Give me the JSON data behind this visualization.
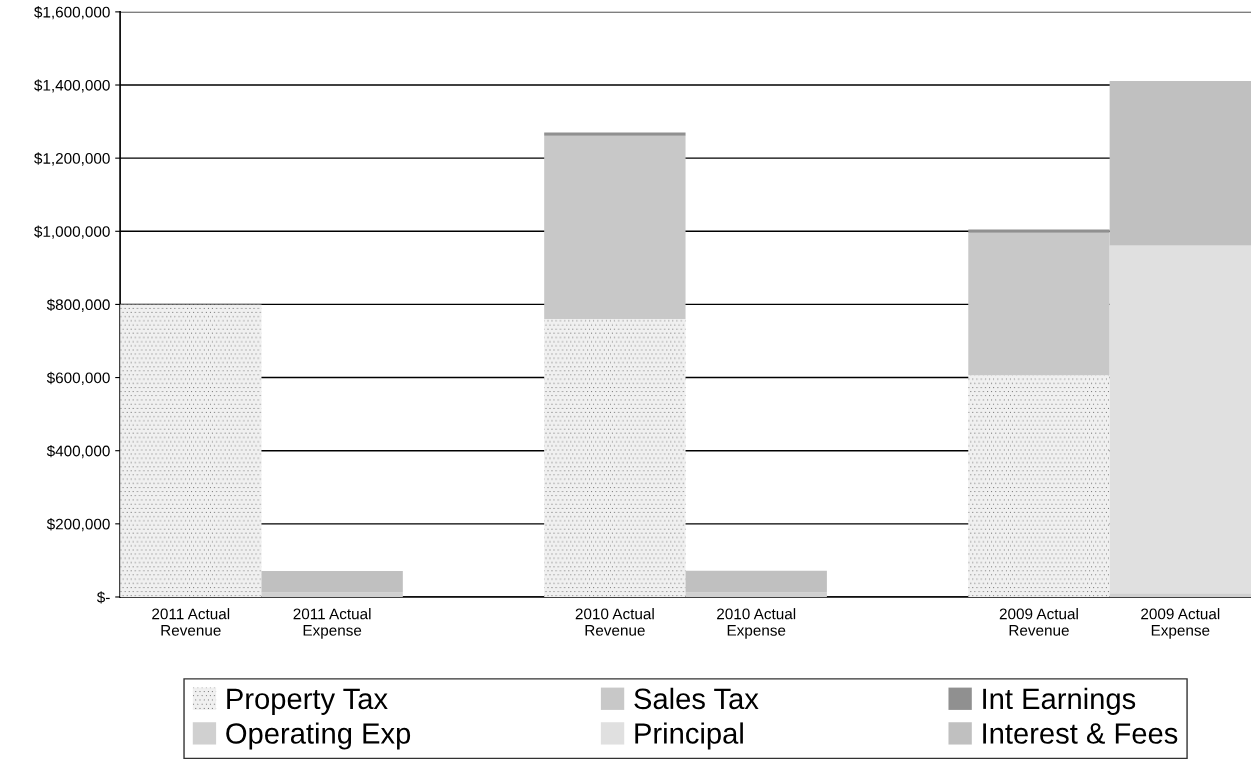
{
  "chart_data": {
    "type": "bar",
    "stacked": true,
    "categories": [
      "2011 Actual\nRevenue",
      "2011 Actual\nExpense",
      null,
      "2010 Actual\nRevenue",
      "2010 Actual\nExpense",
      null,
      "2009 Actual\nRevenue",
      "2009 Actual\nExpense"
    ],
    "series": [
      {
        "name": "Property Tax",
        "color": "#f0f0f0",
        "values": [
          800000,
          null,
          null,
          760000,
          null,
          null,
          606000,
          null
        ]
      },
      {
        "name": "Sales Tax",
        "color": "#c8c8c8",
        "values": [
          null,
          null,
          null,
          501000,
          null,
          null,
          390000,
          null
        ]
      },
      {
        "name": "Int Earnings",
        "color": "#909090",
        "values": [
          null,
          null,
          null,
          9000,
          null,
          null,
          9000,
          null
        ]
      },
      {
        "name": "Operating Exp",
        "color": "#d0d0d0",
        "values": [
          null,
          12000,
          null,
          null,
          12000,
          null,
          null,
          10000
        ]
      },
      {
        "name": "Principal",
        "color": "#e0e0e0",
        "values": [
          null,
          null,
          null,
          null,
          null,
          null,
          null,
          951000
        ]
      },
      {
        "name": "Interest & Fees",
        "color": "#c0c0c0",
        "values": [
          null,
          59000,
          null,
          null,
          60000,
          null,
          null,
          450000
        ]
      }
    ],
    "ylim": [
      0,
      1600000
    ],
    "yticks": [
      {
        "value": 0,
        "label": "$-"
      },
      {
        "value": 200000,
        "label": "$200,000"
      },
      {
        "value": 400000,
        "label": "$400,000"
      },
      {
        "value": 600000,
        "label": "$600,000"
      },
      {
        "value": 800000,
        "label": "$800,000"
      },
      {
        "value": 1000000,
        "label": "$1,000,000"
      },
      {
        "value": 1200000,
        "label": "$1,200,000"
      },
      {
        "value": 1400000,
        "label": "$1,400,000"
      },
      {
        "value": 1600000,
        "label": "$1,600,000"
      }
    ],
    "grid": "y",
    "legend": "bottom"
  }
}
